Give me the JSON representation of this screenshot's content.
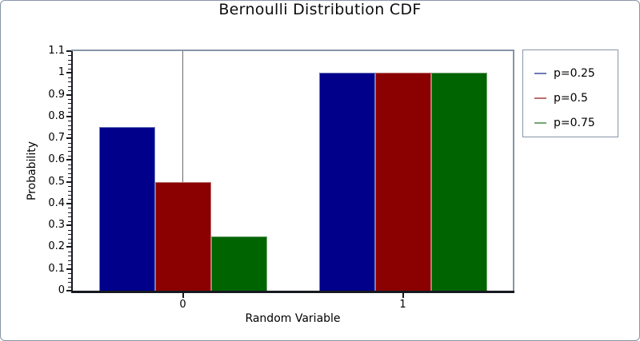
{
  "title": "Bernoulli Distribution CDF",
  "chart_data": {
    "type": "bar",
    "title": "Bernoulli Distribution CDF",
    "categories": [
      "0",
      "1"
    ],
    "series": [
      {
        "name": "p=0.25",
        "values": [
          0.75,
          1.0
        ],
        "color": "#00008b",
        "edge_color": "#6e79bb"
      },
      {
        "name": "p=0.5",
        "values": [
          0.5,
          1.0
        ],
        "color": "#8b0000",
        "edge_color": "#bb6e6e"
      },
      {
        "name": "p=0.75",
        "values": [
          0.25,
          1.0
        ],
        "color": "#006400",
        "edge_color": "#74a674"
      }
    ],
    "xlabel": "Random Variable",
    "ylabel": "Probability",
    "ylim": [
      0,
      1.1
    ],
    "ytick_labels": [
      "0",
      "0.1",
      "0.2",
      "0.3",
      "0.4",
      "0.5",
      "0.6",
      "0.7",
      "0.8",
      "0.9",
      "1",
      "1.1"
    ],
    "minor_ticks_per_interval": 4,
    "legend_position": "right-outside",
    "grid": false,
    "origin_vline_at_category": "0"
  },
  "colors": {
    "frame": "#8895a8",
    "axis": "#16191f",
    "gridline": "#6b6b6b",
    "background": "#ffffff",
    "text": "#000000"
  }
}
